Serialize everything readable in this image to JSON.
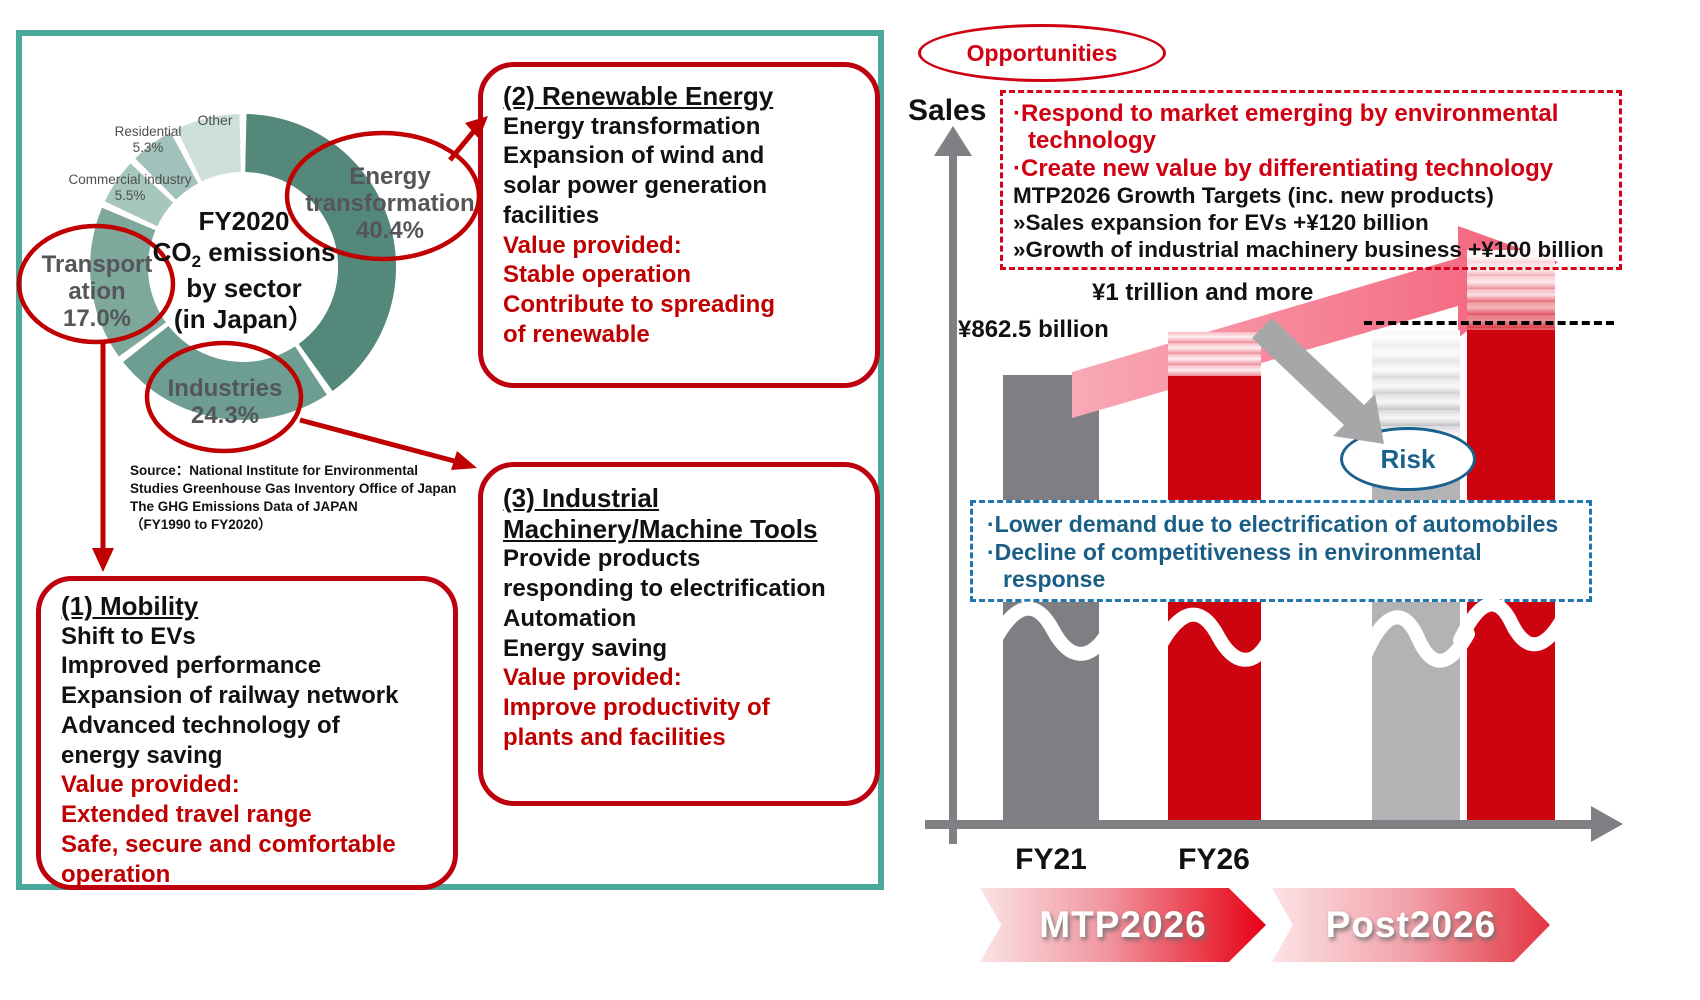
{
  "colors": {
    "teal_border": "#4BA99C",
    "callout_border_red": "#BE000E",
    "text_red": "#C00000",
    "bright_red": "#D00011",
    "bar_red": "#CE0310",
    "bar_dark_gray": "#7F7F83",
    "bar_light_gray": "#B3B3B6",
    "axis_gray": "#808084",
    "pink_arrow": "#F4697E",
    "risk_blue": "#19618E",
    "donut_label_gray": "#55565A"
  },
  "left_panel": {
    "donut_center": {
      "line1": "FY2020",
      "co2_prefix": "CO",
      "co2_sub": "2",
      "co2_suffix": " emissions",
      "line3": "by sector",
      "line4": "(in Japan）"
    },
    "outer_labels": {
      "other": "Other",
      "residential_name": "Residential",
      "residential_pct": "5.3%",
      "commercial_name": "Commercial industry",
      "commercial_pct": "5.5%"
    },
    "ring_labels": {
      "energy": [
        "Energy",
        "transformation",
        "40.4%"
      ],
      "transportation": [
        "Transport",
        "ation",
        "17.0%"
      ],
      "industries": [
        "Industries",
        "24.3%"
      ]
    },
    "source_lines": [
      "Source：National Institute for Environmental",
      "Studies Greenhouse Gas Inventory Office of Japan",
      "The GHG Emissions Data of JAPAN",
      "（FY1990 to FY2020）"
    ],
    "boxes": {
      "mobility": {
        "title": "(1) Mobility",
        "black_lines": [
          "Shift to EVs",
          "Improved performance",
          "Expansion of railway network",
          "Advanced technology of",
          "energy saving"
        ],
        "red_lines": [
          "Value provided:",
          "Extended travel range",
          "Safe, secure and comfortable",
          "operation"
        ]
      },
      "renewable": {
        "title": "(2) Renewable Energy",
        "black_lines": [
          "Energy transformation",
          "Expansion of wind and",
          "solar power generation",
          "facilities"
        ],
        "red_lines": [
          "Value provided:",
          "Stable operation",
          "Contribute to spreading",
          "of renewable"
        ]
      },
      "industrial": {
        "title_lines": [
          "(3) Industrial",
          "Machinery/Machine Tools"
        ],
        "black_lines": [
          "Provide products",
          "responding to electrification",
          "Automation",
          "Energy saving"
        ],
        "red_lines": [
          "Value provided:",
          "Improve productivity of",
          "plants and facilities"
        ]
      }
    }
  },
  "right_panel": {
    "opportunities_label": "Opportunities",
    "sales_label": "Sales",
    "opportunity_box": {
      "red_lines": [
        "·Respond to market emerging by environmental technology",
        "·Create new value by differentiating technology"
      ],
      "black_lines": [
        "MTP2026 Growth Targets (inc. new products)",
        "»Sales expansion for EVs +¥120 billion",
        "»Growth of industrial machinery business +¥100 billion"
      ]
    },
    "fy21_value": "¥862.5 billion",
    "fy26_value": "¥1 trillion and more",
    "risk_label": "Risk",
    "risk_box_lines": [
      "·Lower demand due to electrification of automobiles",
      "·Decline of competitiveness in environmental response"
    ],
    "x_axis_labels": [
      "FY21",
      "FY26"
    ],
    "banners": [
      "MTP2026",
      "Post2026"
    ]
  },
  "chart_data": [
    {
      "type": "pie",
      "title": "FY2020 CO2 emissions by sector (in Japan)",
      "segments": [
        {
          "label": "Energy transformation",
          "value": 40.4,
          "color": "#54887B"
        },
        {
          "label": "Industries",
          "value": 24.3,
          "color": "#6E9E91"
        },
        {
          "label": "Transportation",
          "value": 17.0,
          "color": "#7EA89C"
        },
        {
          "label": "Commercial industry",
          "value": 5.5,
          "color": "#A6C6BE"
        },
        {
          "label": "Residential",
          "value": 5.3,
          "color": "#A0C2BA"
        },
        {
          "label": "Other",
          "value": 7.5,
          "color": "#CEE0DB"
        }
      ],
      "source": "National Institute for Environmental Studies Greenhouse Gas Inventory Office of Japan, The GHG Emissions Data of JAPAN (FY1990 to FY2020)"
    },
    {
      "type": "bar",
      "ylabel": "Sales",
      "categories": [
        "FY21",
        "FY26",
        "Post2026 risk scenario",
        "Post2026 growth scenario"
      ],
      "values": [
        862.5,
        1000,
        null,
        null
      ],
      "unit": "billion yen",
      "value_labels": [
        "¥862.5 billion",
        "¥1 trillion and more",
        "",
        ""
      ],
      "bar_colors": [
        "#7F7F83",
        "#CE0310",
        "#B3B3B6",
        "#CE0310"
      ],
      "annotations": [
        "MTP2026 Growth Targets (inc. new products): Sales expansion for EVs +¥120 billion; Growth of industrial machinery business +¥100 billion",
        "Risk: Lower demand due to electrification of automobiles; Decline of competitiveness in environmental response"
      ]
    }
  ]
}
